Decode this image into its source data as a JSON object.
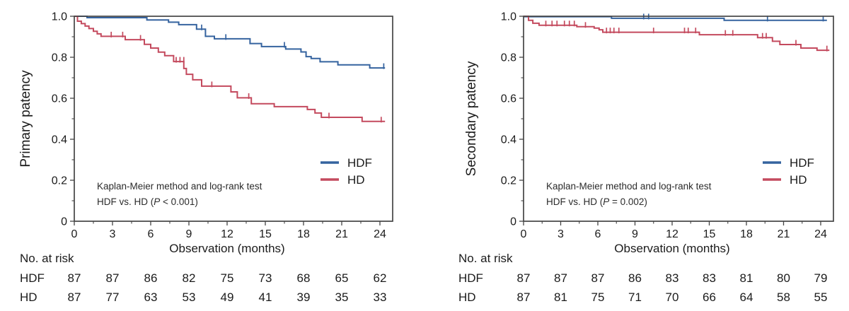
{
  "figure": {
    "background": "#ffffff",
    "frame_color": "#454545",
    "text_color": "#1b1b1b",
    "hdf_color": "#35639f",
    "hd_color": "#c44a5e"
  },
  "chart_data": [
    {
      "type": "line",
      "subtype": "kaplan-meier-step",
      "panel": "primary",
      "ylabel": "Primary patency",
      "xlabel": "Observation (months)",
      "xlim": [
        0,
        25
      ],
      "ylim": [
        0,
        1.0
      ],
      "grid": false,
      "legend_position": "right-middle",
      "x_ticks": [
        0,
        3,
        6,
        9,
        12,
        15,
        18,
        21,
        24
      ],
      "y_ticks": [
        {
          "value": 1.0,
          "label": "1.0"
        },
        {
          "value": 0.8,
          "label": "0.8"
        },
        {
          "value": 0.6,
          "label": "0.6"
        },
        {
          "value": 0.4,
          "label": "0.4"
        },
        {
          "value": 0.2,
          "label": "0.2"
        },
        {
          "value": 0.0,
          "label": "0"
        }
      ],
      "series": [
        {
          "name": "HDF",
          "color": "#35639f",
          "steps": [
            [
              0,
              1.0
            ],
            [
              1.0,
              0.993
            ],
            [
              5.7,
              0.982
            ],
            [
              7.4,
              0.971
            ],
            [
              8.2,
              0.959
            ],
            [
              9.6,
              0.937
            ],
            [
              10.3,
              0.902
            ],
            [
              11.0,
              0.89
            ],
            [
              13.8,
              0.867
            ],
            [
              14.7,
              0.852
            ],
            [
              16.6,
              0.84
            ],
            [
              17.8,
              0.826
            ],
            [
              18.2,
              0.803
            ],
            [
              18.6,
              0.794
            ],
            [
              19.3,
              0.778
            ],
            [
              20.7,
              0.763
            ],
            [
              23.2,
              0.748
            ],
            [
              24.4,
              0.748
            ]
          ],
          "censors": [
            [
              10.0,
              0.937
            ],
            [
              11.9,
              0.89
            ],
            [
              16.5,
              0.852
            ],
            [
              24.3,
              0.748
            ]
          ]
        },
        {
          "name": "HD",
          "color": "#c44a5e",
          "steps": [
            [
              0,
              1.0
            ],
            [
              0.25,
              0.976
            ],
            [
              0.55,
              0.964
            ],
            [
              0.85,
              0.952
            ],
            [
              1.15,
              0.94
            ],
            [
              1.5,
              0.927
            ],
            [
              1.8,
              0.914
            ],
            [
              2.1,
              0.902
            ],
            [
              4.0,
              0.886
            ],
            [
              5.5,
              0.863
            ],
            [
              6.0,
              0.845
            ],
            [
              6.6,
              0.825
            ],
            [
              7.1,
              0.808
            ],
            [
              7.8,
              0.779
            ],
            [
              8.6,
              0.745
            ],
            [
              8.8,
              0.717
            ],
            [
              9.3,
              0.69
            ],
            [
              10.0,
              0.659
            ],
            [
              12.3,
              0.631
            ],
            [
              12.8,
              0.602
            ],
            [
              13.9,
              0.573
            ],
            [
              15.7,
              0.559
            ],
            [
              18.3,
              0.545
            ],
            [
              18.9,
              0.528
            ],
            [
              19.4,
              0.507
            ],
            [
              22.6,
              0.487
            ],
            [
              24.4,
              0.487
            ]
          ],
          "censors": [
            [
              2.9,
              0.902
            ],
            [
              3.8,
              0.902
            ],
            [
              5.2,
              0.886
            ],
            [
              8.0,
              0.779
            ],
            [
              8.3,
              0.779
            ],
            [
              8.6,
              0.779
            ],
            [
              10.8,
              0.659
            ],
            [
              13.7,
              0.602
            ],
            [
              20.0,
              0.507
            ],
            [
              24.1,
              0.487
            ]
          ]
        }
      ],
      "annotation": {
        "line1": "Kaplan-Meier method and log-rank test",
        "line2_before": "HDF vs. HD (",
        "p": "P",
        "line2_after": " < 0.001)"
      },
      "risk_table": {
        "title": "No. at risk",
        "rows": [
          {
            "label": "HDF",
            "values": [
              87,
              87,
              86,
              82,
              75,
              73,
              68,
              65,
              62
            ]
          },
          {
            "label": "HD",
            "values": [
              87,
              77,
              63,
              53,
              49,
              41,
              39,
              35,
              33
            ]
          }
        ]
      }
    },
    {
      "type": "line",
      "subtype": "kaplan-meier-step",
      "panel": "secondary",
      "ylabel": "Secondary patency",
      "xlabel": "Observation (months)",
      "xlim": [
        0,
        25
      ],
      "ylim": [
        0,
        1.0
      ],
      "grid": false,
      "legend_position": "right-middle",
      "x_ticks": [
        0,
        3,
        6,
        9,
        12,
        15,
        18,
        21,
        24
      ],
      "y_ticks": [
        {
          "value": 1.0,
          "label": "1.0"
        },
        {
          "value": 0.8,
          "label": "0.8"
        },
        {
          "value": 0.6,
          "label": "0.6"
        },
        {
          "value": 0.4,
          "label": "0.4"
        },
        {
          "value": 0.2,
          "label": "0.2"
        },
        {
          "value": 0.0,
          "label": "0"
        }
      ],
      "series": [
        {
          "name": "HDF",
          "color": "#35639f",
          "steps": [
            [
              0,
              0.998
            ],
            [
              7.1,
              0.99
            ],
            [
              16.2,
              0.98
            ],
            [
              24.5,
              0.98
            ]
          ],
          "censors": [
            [
              9.7,
              0.99
            ],
            [
              10.1,
              0.99
            ],
            [
              19.7,
              0.98
            ],
            [
              24.2,
              0.98
            ]
          ]
        },
        {
          "name": "HD",
          "color": "#c44a5e",
          "steps": [
            [
              0,
              1.0
            ],
            [
              0.4,
              0.98
            ],
            [
              0.75,
              0.966
            ],
            [
              1.25,
              0.956
            ],
            [
              4.3,
              0.949
            ],
            [
              5.7,
              0.942
            ],
            [
              6.1,
              0.934
            ],
            [
              6.4,
              0.922
            ],
            [
              14.2,
              0.91
            ],
            [
              18.9,
              0.896
            ],
            [
              20.1,
              0.878
            ],
            [
              20.7,
              0.862
            ],
            [
              22.4,
              0.845
            ],
            [
              23.7,
              0.834
            ],
            [
              24.7,
              0.834
            ]
          ],
          "censors": [
            [
              1.8,
              0.956
            ],
            [
              2.3,
              0.956
            ],
            [
              2.7,
              0.956
            ],
            [
              3.3,
              0.956
            ],
            [
              3.7,
              0.956
            ],
            [
              4.1,
              0.956
            ],
            [
              5.0,
              0.949
            ],
            [
              6.7,
              0.922
            ],
            [
              7.0,
              0.922
            ],
            [
              7.3,
              0.922
            ],
            [
              7.7,
              0.922
            ],
            [
              10.5,
              0.922
            ],
            [
              13.0,
              0.922
            ],
            [
              13.3,
              0.922
            ],
            [
              13.9,
              0.922
            ],
            [
              16.3,
              0.91
            ],
            [
              16.9,
              0.91
            ],
            [
              19.3,
              0.896
            ],
            [
              19.6,
              0.896
            ],
            [
              22.0,
              0.862
            ],
            [
              24.5,
              0.834
            ]
          ]
        }
      ],
      "annotation": {
        "line1": "Kaplan-Meier method and log-rank test",
        "line2_before": "HDF vs. HD (",
        "p": "P",
        "line2_after": " = 0.002)"
      },
      "risk_table": {
        "title": "No. at risk",
        "rows": [
          {
            "label": "HDF",
            "values": [
              87,
              87,
              87,
              86,
              83,
              83,
              81,
              80,
              79
            ]
          },
          {
            "label": "HD",
            "values": [
              87,
              81,
              75,
              71,
              70,
              66,
              64,
              58,
              55
            ]
          }
        ]
      }
    }
  ]
}
